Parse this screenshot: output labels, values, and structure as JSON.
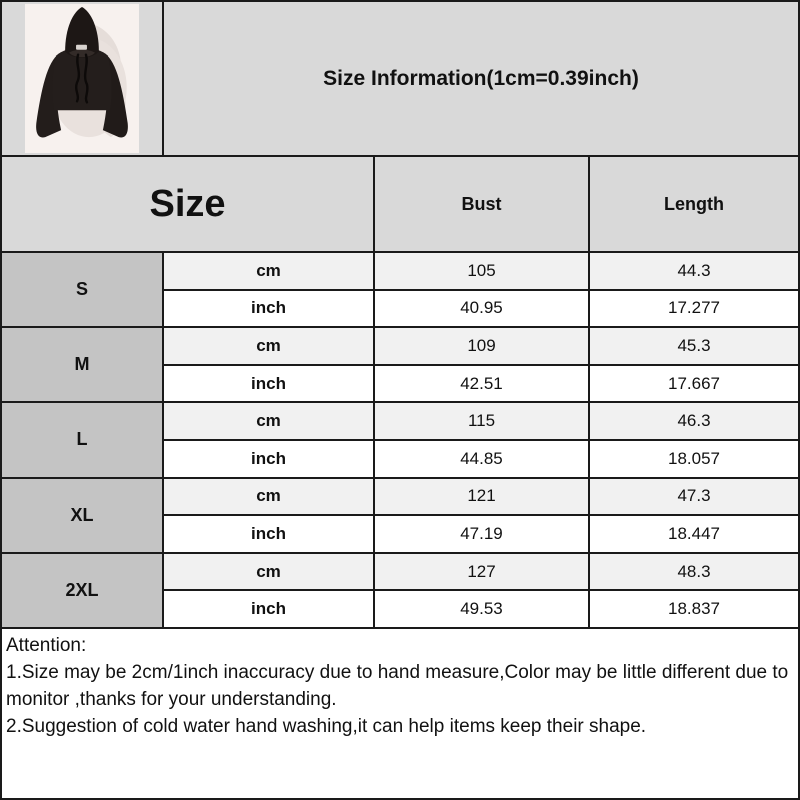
{
  "title": "Size Information(1cm=0.39inch)",
  "product_image": {
    "description": "black cropped hoodie product photo"
  },
  "table": {
    "header": {
      "size": "Size",
      "bust": "Bust",
      "length": "Length"
    },
    "unit_labels": [
      "cm",
      "inch"
    ],
    "rows": [
      {
        "size": "S",
        "cm": {
          "bust": "105",
          "length": "44.3"
        },
        "inch": {
          "bust": "40.95",
          "length": "17.277"
        }
      },
      {
        "size": "M",
        "cm": {
          "bust": "109",
          "length": "45.3"
        },
        "inch": {
          "bust": "42.51",
          "length": "17.667"
        }
      },
      {
        "size": "L",
        "cm": {
          "bust": "115",
          "length": "46.3"
        },
        "inch": {
          "bust": "44.85",
          "length": "18.057"
        }
      },
      {
        "size": "XL",
        "cm": {
          "bust": "121",
          "length": "47.3"
        },
        "inch": {
          "bust": "47.19",
          "length": "18.447"
        }
      },
      {
        "size": "2XL",
        "cm": {
          "bust": "127",
          "length": "48.3"
        },
        "inch": {
          "bust": "49.53",
          "length": "18.837"
        }
      }
    ]
  },
  "attention": {
    "heading": "Attention:",
    "notes": [
      "1.Size may be 2cm/1inch inaccuracy due to hand measure,Color may be little different due to monitor ,thanks for your understanding.",
      "2.Suggestion of cold water hand washing,it can help items keep their shape."
    ]
  },
  "colors": {
    "section_gray": "#d9d9d9",
    "size_label_gray": "#c4c4c4",
    "cm_row": "#f1f1f1",
    "inch_row": "#ffffff",
    "border_black": "#1a1a1a",
    "photo_background": "#f7f1ee",
    "hoodie_black": "#231d1b"
  }
}
